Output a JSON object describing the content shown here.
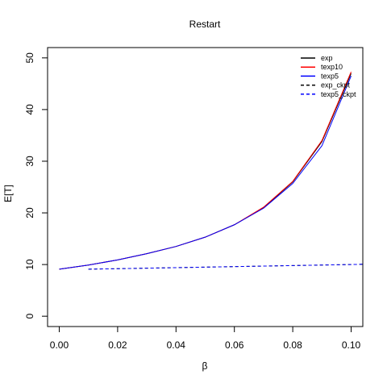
{
  "chart_data": {
    "type": "line",
    "title": "Restart",
    "xlabel": "β",
    "ylabel": "E[T]",
    "xlim": [
      -0.004,
      0.104
    ],
    "ylim": [
      -2,
      52
    ],
    "xticks": [
      "0.00",
      "0.02",
      "0.04",
      "0.06",
      "0.08",
      "0.10"
    ],
    "yticks": [
      "0",
      "10",
      "20",
      "30",
      "40",
      "50"
    ],
    "grid": false,
    "legend_position": "top-right",
    "series": [
      {
        "name": "exp",
        "color": "#000000",
        "dash": "solid",
        "x": [
          0.0,
          0.01,
          0.02,
          0.03,
          0.04,
          0.05,
          0.06,
          0.07,
          0.08,
          0.09,
          0.1
        ],
        "y": [
          9.1,
          9.9,
          10.9,
          12.1,
          13.5,
          15.3,
          17.7,
          21.0,
          26.0,
          33.8,
          47.0
        ]
      },
      {
        "name": "texp10",
        "color": "#ff0000",
        "dash": "solid",
        "x": [
          0.0,
          0.01,
          0.02,
          0.03,
          0.04,
          0.05,
          0.06,
          0.07,
          0.08,
          0.09,
          0.1
        ],
        "y": [
          9.1,
          9.9,
          10.9,
          12.1,
          13.5,
          15.3,
          17.7,
          21.1,
          26.1,
          34.0,
          47.3
        ]
      },
      {
        "name": "texp5",
        "color": "#0000ff",
        "dash": "solid",
        "x": [
          0.0,
          0.01,
          0.02,
          0.03,
          0.04,
          0.05,
          0.06,
          0.07,
          0.08,
          0.09,
          0.1
        ],
        "y": [
          9.1,
          9.9,
          10.9,
          12.1,
          13.5,
          15.3,
          17.7,
          20.9,
          25.7,
          33.0,
          46.5
        ]
      },
      {
        "name": "exp_ckpt",
        "color": "#000000",
        "dash": "dashed",
        "x": [
          0.01,
          0.02,
          0.03,
          0.04,
          0.05,
          0.06,
          0.07,
          0.08,
          0.09,
          0.1,
          0.104
        ],
        "y": [
          9.1,
          9.2,
          9.3,
          9.4,
          9.5,
          9.6,
          9.7,
          9.8,
          9.9,
          10.0,
          10.05
        ]
      },
      {
        "name": "texp5_ckpt",
        "color": "#0000ff",
        "dash": "dashed",
        "x": [
          0.01,
          0.02,
          0.03,
          0.04,
          0.05,
          0.06,
          0.07,
          0.08,
          0.09,
          0.1,
          0.104
        ],
        "y": [
          9.1,
          9.2,
          9.3,
          9.4,
          9.5,
          9.6,
          9.7,
          9.8,
          9.9,
          10.0,
          10.05
        ]
      }
    ]
  }
}
